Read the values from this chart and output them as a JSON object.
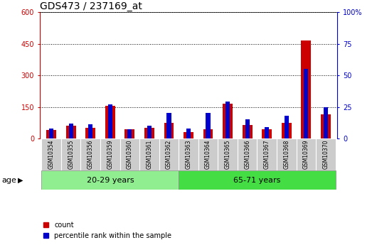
{
  "title": "GDS473 / 237169_at",
  "samples": [
    "GSM10354",
    "GSM10355",
    "GSM10356",
    "GSM10359",
    "GSM10360",
    "GSM10361",
    "GSM10362",
    "GSM10363",
    "GSM10364",
    "GSM10365",
    "GSM10366",
    "GSM10367",
    "GSM10368",
    "GSM10369",
    "GSM10370"
  ],
  "count_values": [
    40,
    60,
    50,
    155,
    45,
    50,
    75,
    30,
    45,
    165,
    65,
    45,
    75,
    465,
    115
  ],
  "percentile_values": [
    8,
    12,
    11,
    27,
    7,
    10,
    20,
    8,
    20,
    29,
    15,
    9,
    18,
    55,
    25
  ],
  "group1_label": "20-29 years",
  "group2_label": "65-71 years",
  "group1_count": 7,
  "group2_count": 8,
  "ylim_left": [
    0,
    600
  ],
  "ylim_right": [
    0,
    100
  ],
  "yticks_left": [
    0,
    150,
    300,
    450,
    600
  ],
  "yticks_right": [
    0,
    25,
    50,
    75,
    100
  ],
  "bar_color_count": "#cc0000",
  "bar_color_pct": "#0000cc",
  "group1_bg": "#90ee90",
  "group2_bg": "#44dd44",
  "sample_bg": "#cccccc",
  "age_label": "age",
  "legend_count": "count",
  "legend_pct": "percentile rank within the sample",
  "bar_width": 0.5,
  "title_fontsize": 10,
  "tick_fontsize": 7,
  "label_fontsize": 8,
  "sample_fontsize": 5.5
}
